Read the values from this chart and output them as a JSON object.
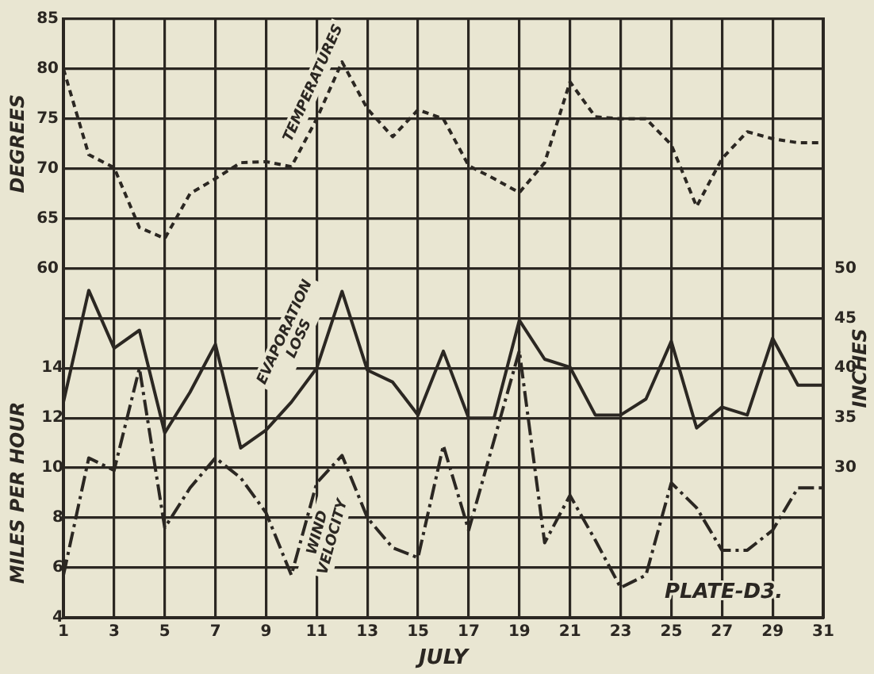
{
  "chart_data": {
    "type": "line",
    "xlabel": "JULY",
    "ylabel": "DEGREES",
    "y3label": "MILES PER HOUR",
    "y2label": "INCHES",
    "x": [
      1,
      2,
      3,
      4,
      5,
      6,
      7,
      8,
      9,
      10,
      11,
      12,
      13,
      14,
      15,
      16,
      17,
      18,
      19,
      20,
      21,
      22,
      23,
      24,
      25,
      26,
      27,
      28,
      29,
      30,
      31
    ],
    "xlim": [
      1,
      31
    ],
    "xticks": [
      1,
      3,
      5,
      7,
      9,
      11,
      13,
      15,
      17,
      19,
      21,
      23,
      25,
      27,
      29,
      31
    ],
    "ylim": [
      25,
      85
    ],
    "yticks": [
      {
        "value": 25,
        "label": null
      },
      {
        "value": 30,
        "label": null
      },
      {
        "value": 35,
        "label": null
      },
      {
        "value": 40,
        "label": null
      },
      {
        "value": 45,
        "label": null
      },
      {
        "value": 50,
        "label": null
      },
      {
        "value": 55,
        "label": null
      },
      60,
      65,
      70,
      75,
      80,
      85
    ],
    "y3lim": [
      4,
      28
    ],
    "y3ticks": [
      4,
      6,
      8,
      10,
      12,
      14
    ],
    "y2lim": [
      15,
      75
    ],
    "y2ticks": [
      30,
      35,
      40,
      45,
      50
    ],
    "series": [
      {
        "name": "TEMPERATURES",
        "color": "#2b2722",
        "line_style": "dotted",
        "values": [
          80,
          71.4,
          70.1,
          64.1,
          63,
          67.5,
          69,
          70.6,
          70.7,
          70.2,
          75,
          80.7,
          76,
          73.2,
          75.9,
          75,
          70.3,
          69,
          67.6,
          70.6,
          78.7,
          75.2,
          75,
          75,
          72.4,
          66.2,
          71,
          73.7,
          73,
          72.6,
          72.6
        ]
      },
      {
        "name": "EVAPORATION LOSS",
        "color": "#2b2722",
        "line_style": "solid",
        "axis": "y2",
        "values": [
          36.6,
          47.8,
          42,
          43.8,
          33.5,
          37.6,
          42.4,
          32,
          33.8,
          36.6,
          40,
          47.7,
          39.8,
          38.6,
          35.3,
          41.7,
          35,
          35,
          44.8,
          40.9,
          40.1,
          35.3,
          35.3,
          36.9,
          42.7,
          34,
          36.1,
          35.3,
          43,
          38.3,
          38.3
        ]
      },
      {
        "name": "WIND VELOCITY",
        "color": "#2b2722",
        "line_style": "dashed",
        "axis": "y3",
        "values": [
          5.7,
          10.4,
          9.9,
          14,
          7.6,
          9.2,
          10.4,
          9.6,
          8.2,
          5.7,
          9.4,
          10.5,
          8,
          6.8,
          6.4,
          10.9,
          7.5,
          11.1,
          14.7,
          7,
          8.9,
          7.1,
          5.2,
          5.7,
          9.4,
          8.4,
          6.7,
          6.7,
          7.5,
          9.2,
          9.2
        ]
      }
    ],
    "annotations": [
      "PLATE-D3."
    ],
    "grid": true,
    "legend": false,
    "marker": "none"
  }
}
